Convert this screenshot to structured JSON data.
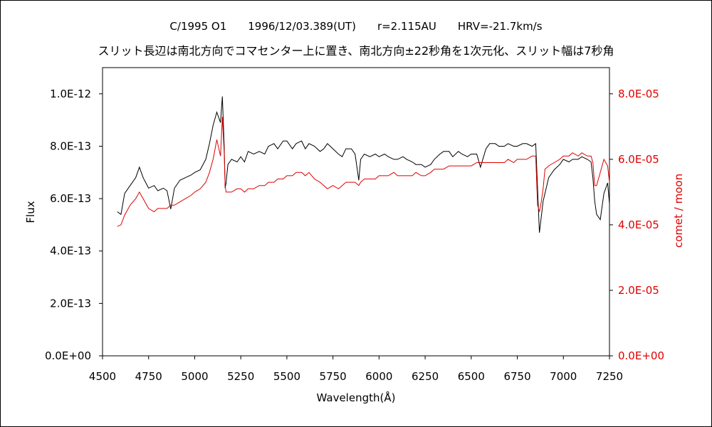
{
  "chart_data": {
    "type": "line",
    "title_line1": "C/1995 O1　　1996/12/03.389(UT)　　r=2.115AU　　HRV=-21.7km/s",
    "title_line2": "スリット長辺は南北方向でコマセンター上に置き、南北方向±22秒角を1次元化、スリット幅は7秒角",
    "xlabel": "Wavelength(Å)",
    "ylabel_left": "Flux",
    "ylabel_right": "comet / moon",
    "xlim": [
      4500,
      7250
    ],
    "ylim_left": [
      0,
      1.1e-12
    ],
    "ylim_right": [
      0,
      8.8e-05
    ],
    "x_ticks": [
      "4500",
      "4750",
      "5000",
      "5250",
      "5500",
      "5750",
      "6000",
      "6250",
      "6500",
      "6750",
      "7000",
      "7250"
    ],
    "y_left_ticks": [
      "0.0E+00",
      "2.0E-13",
      "4.0E-13",
      "6.0E-13",
      "8.0E-13",
      "1.0E-12"
    ],
    "y_right_ticks": [
      "0.0E+00",
      "2.0E-05",
      "4.0E-05",
      "6.0E-05",
      "8.0E-05"
    ],
    "colors": {
      "flux": "#000000",
      "ratio": "#e00000",
      "axis": "#000000"
    },
    "series": [
      {
        "axis": "left",
        "x": [
          4580,
          4600,
          4620,
          4650,
          4680,
          4700,
          4720,
          4750,
          4780,
          4800,
          4830,
          4850,
          4870,
          4890,
          4920,
          4950,
          4980,
          5000,
          5030,
          5060,
          5080,
          5100,
          5120,
          5140,
          5150,
          5160,
          5165,
          5170,
          5180,
          5200,
          5230,
          5250,
          5270,
          5290,
          5320,
          5350,
          5380,
          5400,
          5430,
          5450,
          5480,
          5500,
          5530,
          5550,
          5580,
          5600,
          5620,
          5650,
          5680,
          5700,
          5720,
          5750,
          5780,
          5800,
          5820,
          5850,
          5870,
          5890,
          5900,
          5920,
          5950,
          5980,
          6000,
          6030,
          6050,
          6080,
          6100,
          6130,
          6150,
          6180,
          6200,
          6230,
          6250,
          6280,
          6300,
          6330,
          6350,
          6380,
          6400,
          6430,
          6450,
          6480,
          6500,
          6530,
          6550,
          6580,
          6600,
          6630,
          6650,
          6680,
          6700,
          6730,
          6750,
          6780,
          6800,
          6830,
          6850,
          6860,
          6870,
          6880,
          6890,
          6900,
          6920,
          6950,
          6980,
          7000,
          7030,
          7050,
          7080,
          7100,
          7130,
          7150,
          7160,
          7170,
          7180,
          7200,
          7220,
          7240,
          7250
        ],
        "y": [
          5.5e-13,
          5.4e-13,
          6.2e-13,
          6.5e-13,
          6.8e-13,
          7.2e-13,
          6.8e-13,
          6.4e-13,
          6.5e-13,
          6.3e-13,
          6.4e-13,
          6.3e-13,
          5.6e-13,
          6.4e-13,
          6.7e-13,
          6.8e-13,
          6.9e-13,
          7e-13,
          7.1e-13,
          7.5e-13,
          8.1e-13,
          8.8e-13,
          9.3e-13,
          8.9e-13,
          9.9e-13,
          8e-13,
          6.4e-13,
          6.6e-13,
          7.3e-13,
          7.5e-13,
          7.4e-13,
          7.6e-13,
          7.4e-13,
          7.8e-13,
          7.7e-13,
          7.8e-13,
          7.7e-13,
          8e-13,
          8.1e-13,
          7.9e-13,
          8.2e-13,
          8.2e-13,
          7.9e-13,
          8.1e-13,
          8.2e-13,
          7.9e-13,
          8.1e-13,
          8e-13,
          7.8e-13,
          7.9e-13,
          8.1e-13,
          7.9e-13,
          7.7e-13,
          7.6e-13,
          7.9e-13,
          7.9e-13,
          7.7e-13,
          6.7e-13,
          7.5e-13,
          7.7e-13,
          7.6e-13,
          7.7e-13,
          7.6e-13,
          7.7e-13,
          7.6e-13,
          7.5e-13,
          7.5e-13,
          7.6e-13,
          7.5e-13,
          7.4e-13,
          7.3e-13,
          7.3e-13,
          7.2e-13,
          7.3e-13,
          7.5e-13,
          7.7e-13,
          7.8e-13,
          7.8e-13,
          7.6e-13,
          7.8e-13,
          7.7e-13,
          7.6e-13,
          7.7e-13,
          7.7e-13,
          7.2e-13,
          7.9e-13,
          8.1e-13,
          8.1e-13,
          8e-13,
          8e-13,
          8.1e-13,
          8e-13,
          8e-13,
          8.1e-13,
          8.1e-13,
          8e-13,
          8.1e-13,
          6.4e-13,
          4.7e-13,
          5.3e-13,
          5.9e-13,
          6.2e-13,
          6.8e-13,
          7.1e-13,
          7.3e-13,
          7.5e-13,
          7.4e-13,
          7.5e-13,
          7.5e-13,
          7.6e-13,
          7.5e-13,
          7.4e-13,
          6.8e-13,
          5.9e-13,
          5.4e-13,
          5.2e-13,
          6.2e-13,
          6.6e-13,
          5.8e-13
        ]
      },
      {
        "axis": "right",
        "x": [
          4580,
          4600,
          4620,
          4650,
          4680,
          4700,
          4720,
          4750,
          4780,
          4800,
          4830,
          4850,
          4870,
          4890,
          4920,
          4950,
          4980,
          5000,
          5030,
          5060,
          5080,
          5100,
          5120,
          5140,
          5150,
          5160,
          5165,
          5170,
          5180,
          5200,
          5230,
          5250,
          5270,
          5290,
          5320,
          5350,
          5380,
          5400,
          5430,
          5450,
          5480,
          5500,
          5530,
          5550,
          5580,
          5600,
          5620,
          5650,
          5680,
          5700,
          5720,
          5750,
          5780,
          5800,
          5820,
          5850,
          5870,
          5890,
          5900,
          5920,
          5950,
          5980,
          6000,
          6030,
          6050,
          6080,
          6100,
          6130,
          6150,
          6180,
          6200,
          6230,
          6250,
          6280,
          6300,
          6330,
          6350,
          6380,
          6400,
          6430,
          6450,
          6480,
          6500,
          6530,
          6550,
          6580,
          6600,
          6630,
          6650,
          6680,
          6700,
          6730,
          6750,
          6780,
          6800,
          6830,
          6850,
          6860,
          6870,
          6880,
          6890,
          6900,
          6920,
          6950,
          6980,
          7000,
          7030,
          7050,
          7080,
          7100,
          7130,
          7150,
          7160,
          7170,
          7180,
          7200,
          7220,
          7240,
          7250
        ],
        "y": [
          3.95e-05,
          4e-05,
          4.3e-05,
          4.6e-05,
          4.8e-05,
          5e-05,
          4.8e-05,
          4.5e-05,
          4.4e-05,
          4.5e-05,
          4.5e-05,
          4.5e-05,
          4.6e-05,
          4.6e-05,
          4.7e-05,
          4.8e-05,
          4.9e-05,
          5e-05,
          5.1e-05,
          5.3e-05,
          5.6e-05,
          6e-05,
          6.6e-05,
          6.1e-05,
          7.3e-05,
          6.2e-05,
          5.2e-05,
          5e-05,
          5e-05,
          5e-05,
          5.1e-05,
          5.1e-05,
          5e-05,
          5.1e-05,
          5.1e-05,
          5.2e-05,
          5.2e-05,
          5.3e-05,
          5.3e-05,
          5.4e-05,
          5.4e-05,
          5.5e-05,
          5.5e-05,
          5.6e-05,
          5.6e-05,
          5.5e-05,
          5.6e-05,
          5.4e-05,
          5.3e-05,
          5.2e-05,
          5.1e-05,
          5.2e-05,
          5.1e-05,
          5.2e-05,
          5.3e-05,
          5.3e-05,
          5.3e-05,
          5.2e-05,
          5.3e-05,
          5.4e-05,
          5.4e-05,
          5.4e-05,
          5.5e-05,
          5.5e-05,
          5.5e-05,
          5.6e-05,
          5.5e-05,
          5.5e-05,
          5.5e-05,
          5.5e-05,
          5.6e-05,
          5.5e-05,
          5.5e-05,
          5.6e-05,
          5.7e-05,
          5.7e-05,
          5.7e-05,
          5.8e-05,
          5.8e-05,
          5.8e-05,
          5.8e-05,
          5.8e-05,
          5.8e-05,
          5.9e-05,
          5.9e-05,
          5.9e-05,
          5.9e-05,
          5.9e-05,
          5.9e-05,
          5.9e-05,
          6e-05,
          5.9e-05,
          6e-05,
          6e-05,
          6e-05,
          6.1e-05,
          6.1e-05,
          4.6e-05,
          4.4e-05,
          4.7e-05,
          5.1e-05,
          5.7e-05,
          5.8e-05,
          5.9e-05,
          6e-05,
          6.1e-05,
          6.1e-05,
          6.2e-05,
          6.1e-05,
          6.2e-05,
          6.1e-05,
          6.1e-05,
          5.9e-05,
          5.2e-05,
          5.2e-05,
          5.6e-05,
          6e-05,
          5.8e-05,
          5.3e-05
        ]
      }
    ]
  }
}
